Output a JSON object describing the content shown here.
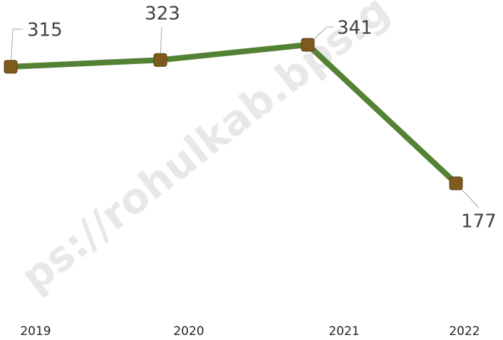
{
  "chart_data": {
    "type": "line",
    "categories": [
      "2019",
      "2020",
      "2021",
      "2022"
    ],
    "series": [
      {
        "name": null,
        "color": "#548235",
        "marker_color": "#7f5a1e",
        "values": [
          315,
          323,
          341,
          177
        ]
      }
    ],
    "ylim": [
      0,
      394
    ],
    "watermark": "ps://rohulkab.bps.g"
  }
}
